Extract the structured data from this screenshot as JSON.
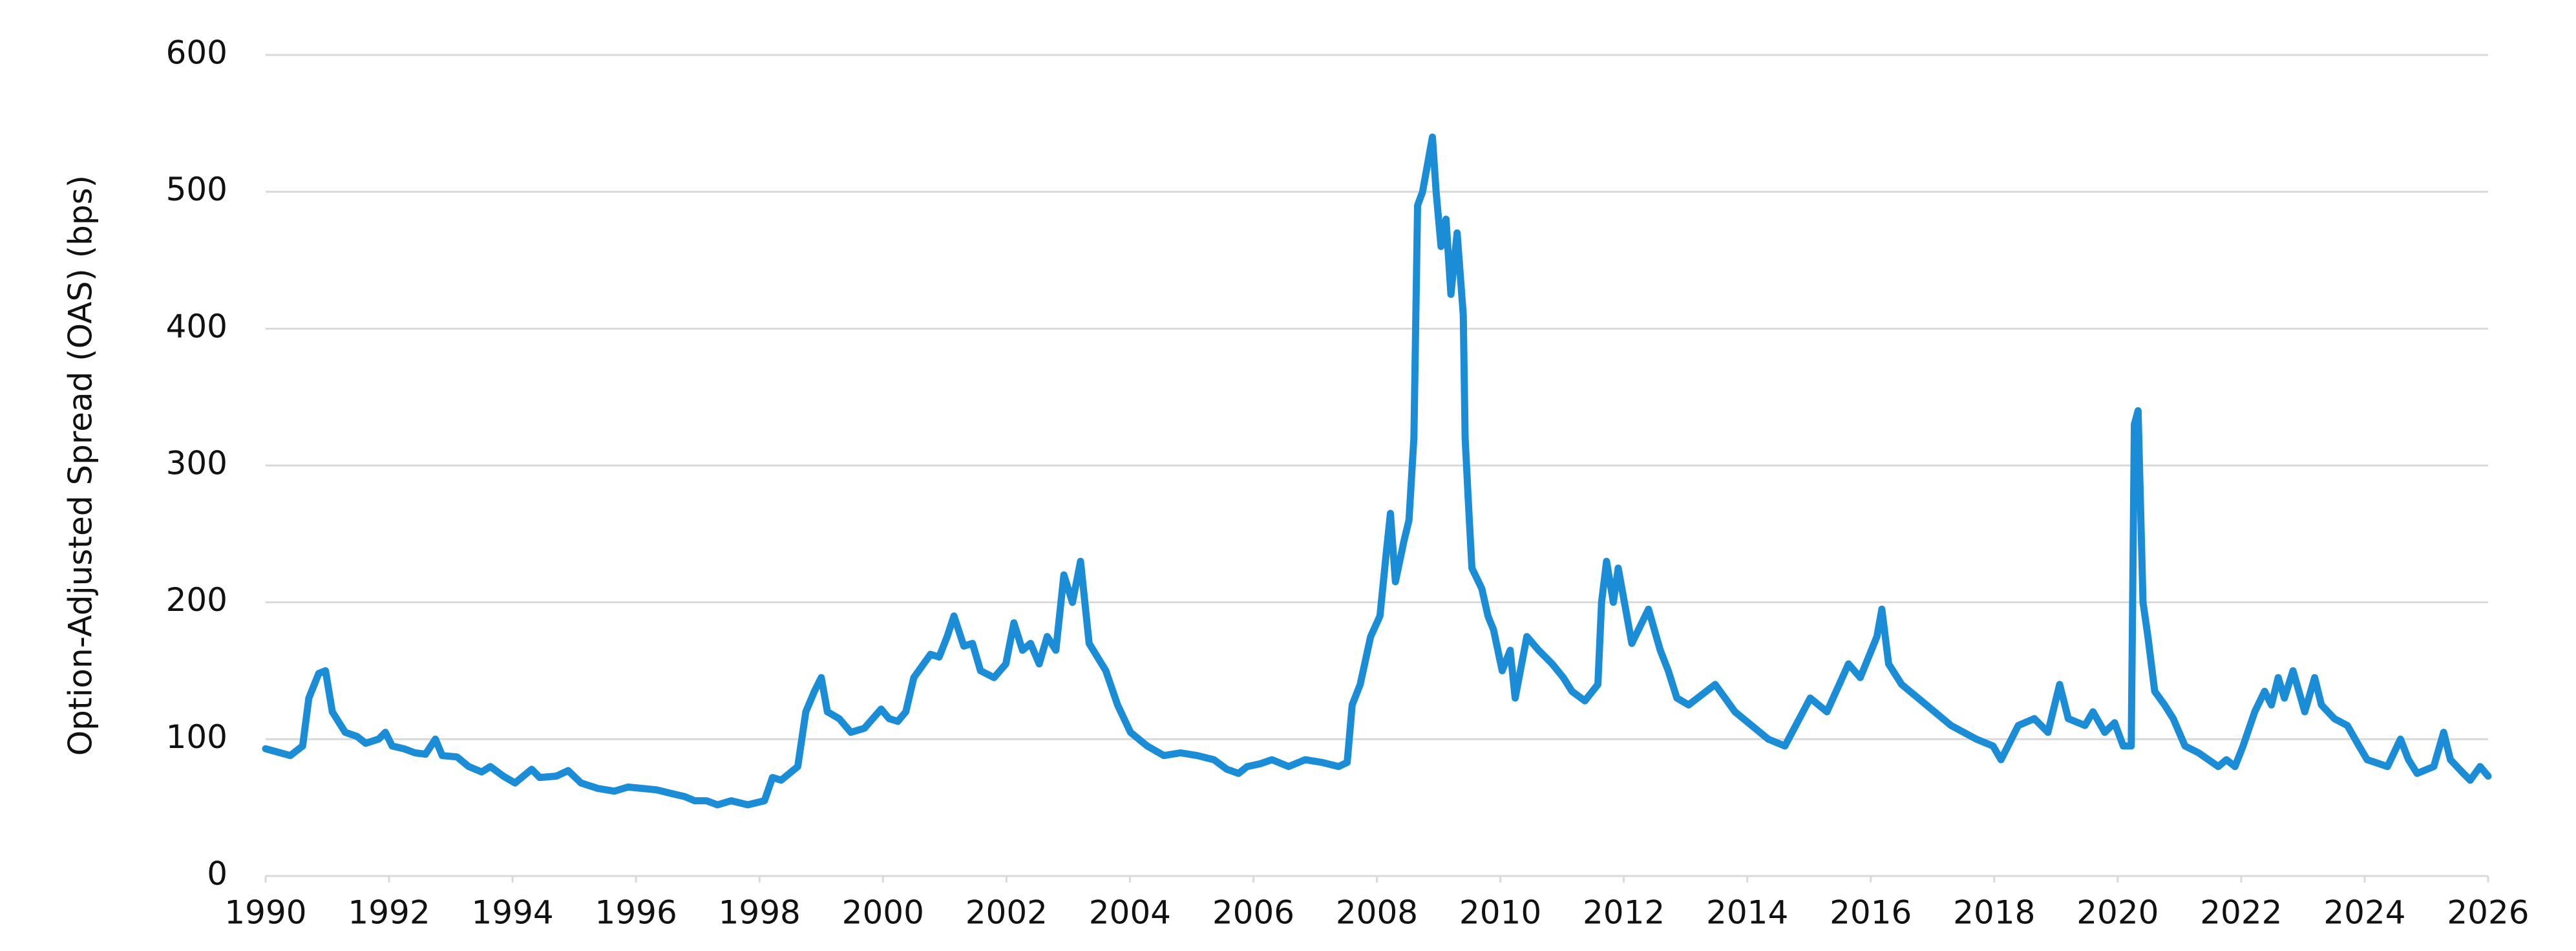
{
  "chart_data": {
    "type": "line",
    "ylabel": "Option-Adjusted Spread (OAS) (bps)",
    "x": [
      1990.0,
      1990.4,
      1990.6,
      1990.7,
      1990.86,
      1990.97,
      1991.08,
      1991.29,
      1991.48,
      1991.62,
      1991.83,
      1991.94,
      1992.05,
      1992.24,
      1992.42,
      1992.59,
      1992.75,
      1992.86,
      1993.1,
      1993.29,
      1993.5,
      1993.64,
      1993.85,
      1994.04,
      1994.31,
      1994.44,
      1994.71,
      1994.9,
      1995.11,
      1995.38,
      1995.65,
      1995.87,
      1996.33,
      1996.6,
      1996.79,
      1996.95,
      1997.14,
      1997.32,
      1997.54,
      1997.81,
      1998.08,
      1998.21,
      1998.35,
      1998.62,
      1998.75,
      1998.89,
      1999.0,
      1999.1,
      1999.29,
      1999.48,
      1999.7,
      1999.97,
      2000.1,
      2000.24,
      2000.37,
      2000.5,
      2000.77,
      2000.91,
      2001.04,
      2001.15,
      2001.31,
      2001.45,
      2001.58,
      2001.8,
      2001.99,
      2002.12,
      2002.26,
      2002.39,
      2002.53,
      2002.66,
      2002.8,
      2002.93,
      2003.07,
      2003.2,
      2003.34,
      2003.61,
      2003.8,
      2004.01,
      2004.28,
      2004.55,
      2004.82,
      2005.09,
      2005.36,
      2005.57,
      2005.76,
      2005.9,
      2006.11,
      2006.3,
      2006.57,
      2006.84,
      2007.11,
      2007.38,
      2007.52,
      2007.6,
      2007.73,
      2007.9,
      2008.05,
      2008.15,
      2008.22,
      2008.3,
      2008.44,
      2008.52,
      2008.6,
      2008.66,
      2008.74,
      2008.9,
      2008.96,
      2009.04,
      2009.12,
      2009.2,
      2009.3,
      2009.4,
      2009.43,
      2009.48,
      2009.54,
      2009.7,
      2009.8,
      2009.89,
      2010.03,
      2010.16,
      2010.24,
      2010.43,
      2010.62,
      2010.84,
      2011.02,
      2011.16,
      2011.37,
      2011.58,
      2011.64,
      2011.72,
      2011.83,
      2011.91,
      2012.13,
      2012.4,
      2012.59,
      2012.72,
      2012.86,
      2013.05,
      2013.48,
      2013.8,
      2014.34,
      2014.61,
      2015.02,
      2015.29,
      2015.64,
      2015.83,
      2016.1,
      2016.18,
      2016.29,
      2016.5,
      2016.9,
      2017.3,
      2017.71,
      2017.98,
      2018.11,
      2018.39,
      2018.65,
      2018.87,
      2019.06,
      2019.2,
      2019.47,
      2019.6,
      2019.79,
      2019.95,
      2020.09,
      2020.22,
      2020.27,
      2020.33,
      2020.41,
      2020.49,
      2020.6,
      2020.76,
      2020.9,
      2021.09,
      2021.31,
      2021.63,
      2021.76,
      2021.9,
      2022.03,
      2022.22,
      2022.38,
      2022.49,
      2022.6,
      2022.7,
      2022.84,
      2023.03,
      2023.19,
      2023.3,
      2023.51,
      2023.72,
      2023.91,
      2024.04,
      2024.37,
      2024.58,
      2024.71,
      2024.85,
      2025.12,
      2025.28,
      2025.39,
      2025.6,
      2025.71,
      2025.87,
      2026.0
    ],
    "series": [
      {
        "color": "#1b8dd6",
        "values": [
          93,
          88,
          95,
          130,
          148,
          150,
          120,
          105,
          102,
          97,
          100,
          105,
          95,
          93,
          90,
          89,
          100,
          88,
          87,
          80,
          76,
          80,
          73,
          68,
          78,
          72,
          73,
          77,
          68,
          64,
          62,
          65,
          63,
          60,
          58,
          55,
          55,
          52,
          55,
          52,
          55,
          72,
          70,
          80,
          120,
          135,
          145,
          120,
          115,
          105,
          108,
          122,
          115,
          113,
          120,
          145,
          162,
          160,
          175,
          190,
          168,
          170,
          150,
          145,
          155,
          185,
          165,
          170,
          155,
          175,
          165,
          220,
          200,
          230,
          170,
          150,
          125,
          105,
          95,
          88,
          90,
          88,
          85,
          78,
          75,
          80,
          82,
          85,
          80,
          85,
          83,
          80,
          83,
          125,
          140,
          175,
          190,
          235,
          265,
          215,
          245,
          260,
          320,
          490,
          500,
          540,
          500,
          460,
          480,
          425,
          470,
          410,
          320,
          275,
          225,
          210,
          190,
          180,
          150,
          165,
          130,
          175,
          165,
          155,
          145,
          135,
          128,
          140,
          200,
          230,
          200,
          225,
          170,
          195,
          165,
          150,
          130,
          125,
          140,
          120,
          100,
          95,
          130,
          120,
          155,
          145,
          175,
          195,
          155,
          140,
          125,
          110,
          100,
          95,
          85,
          110,
          115,
          105,
          140,
          115,
          110,
          120,
          105,
          112,
          95,
          95,
          330,
          340,
          200,
          175,
          135,
          125,
          115,
          95,
          90,
          80,
          85,
          80,
          95,
          120,
          135,
          125,
          145,
          130,
          150,
          120,
          145,
          125,
          115,
          110,
          95,
          85,
          80,
          100,
          85,
          75,
          80,
          105,
          85,
          75,
          70,
          80,
          73
        ]
      }
    ],
    "xlim": [
      1990,
      2026
    ],
    "xticks": [
      1990,
      1992,
      1994,
      1996,
      1998,
      2000,
      2002,
      2004,
      2006,
      2008,
      2010,
      2012,
      2014,
      2016,
      2018,
      2020,
      2022,
      2024,
      2026
    ],
    "ylim": [
      0,
      600
    ],
    "yticks": [
      0,
      100,
      200,
      300,
      400,
      500,
      600
    ],
    "grid": true
  }
}
